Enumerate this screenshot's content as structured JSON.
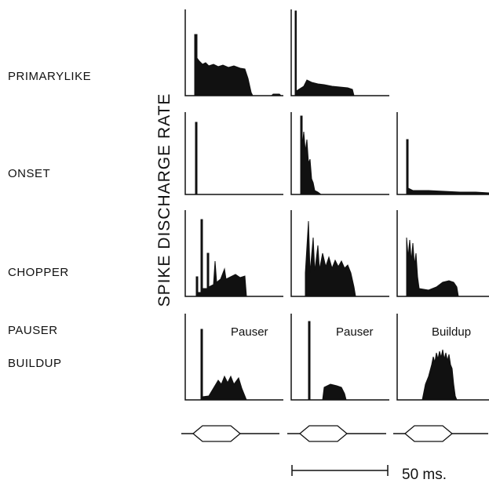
{
  "rows": [
    {
      "label": "PRIMARYLIKE"
    },
    {
      "label": "ONSET"
    },
    {
      "label": "CHOPPER"
    },
    {
      "label": "PAUSER"
    },
    {
      "label": "BUILDUP"
    }
  ],
  "y_axis_label": "SPIKE DISCHARGE RATE",
  "panel_labels": [
    "Pauser",
    "Pauser",
    "Buildup"
  ],
  "scale_bar_label": "50 ms."
}
